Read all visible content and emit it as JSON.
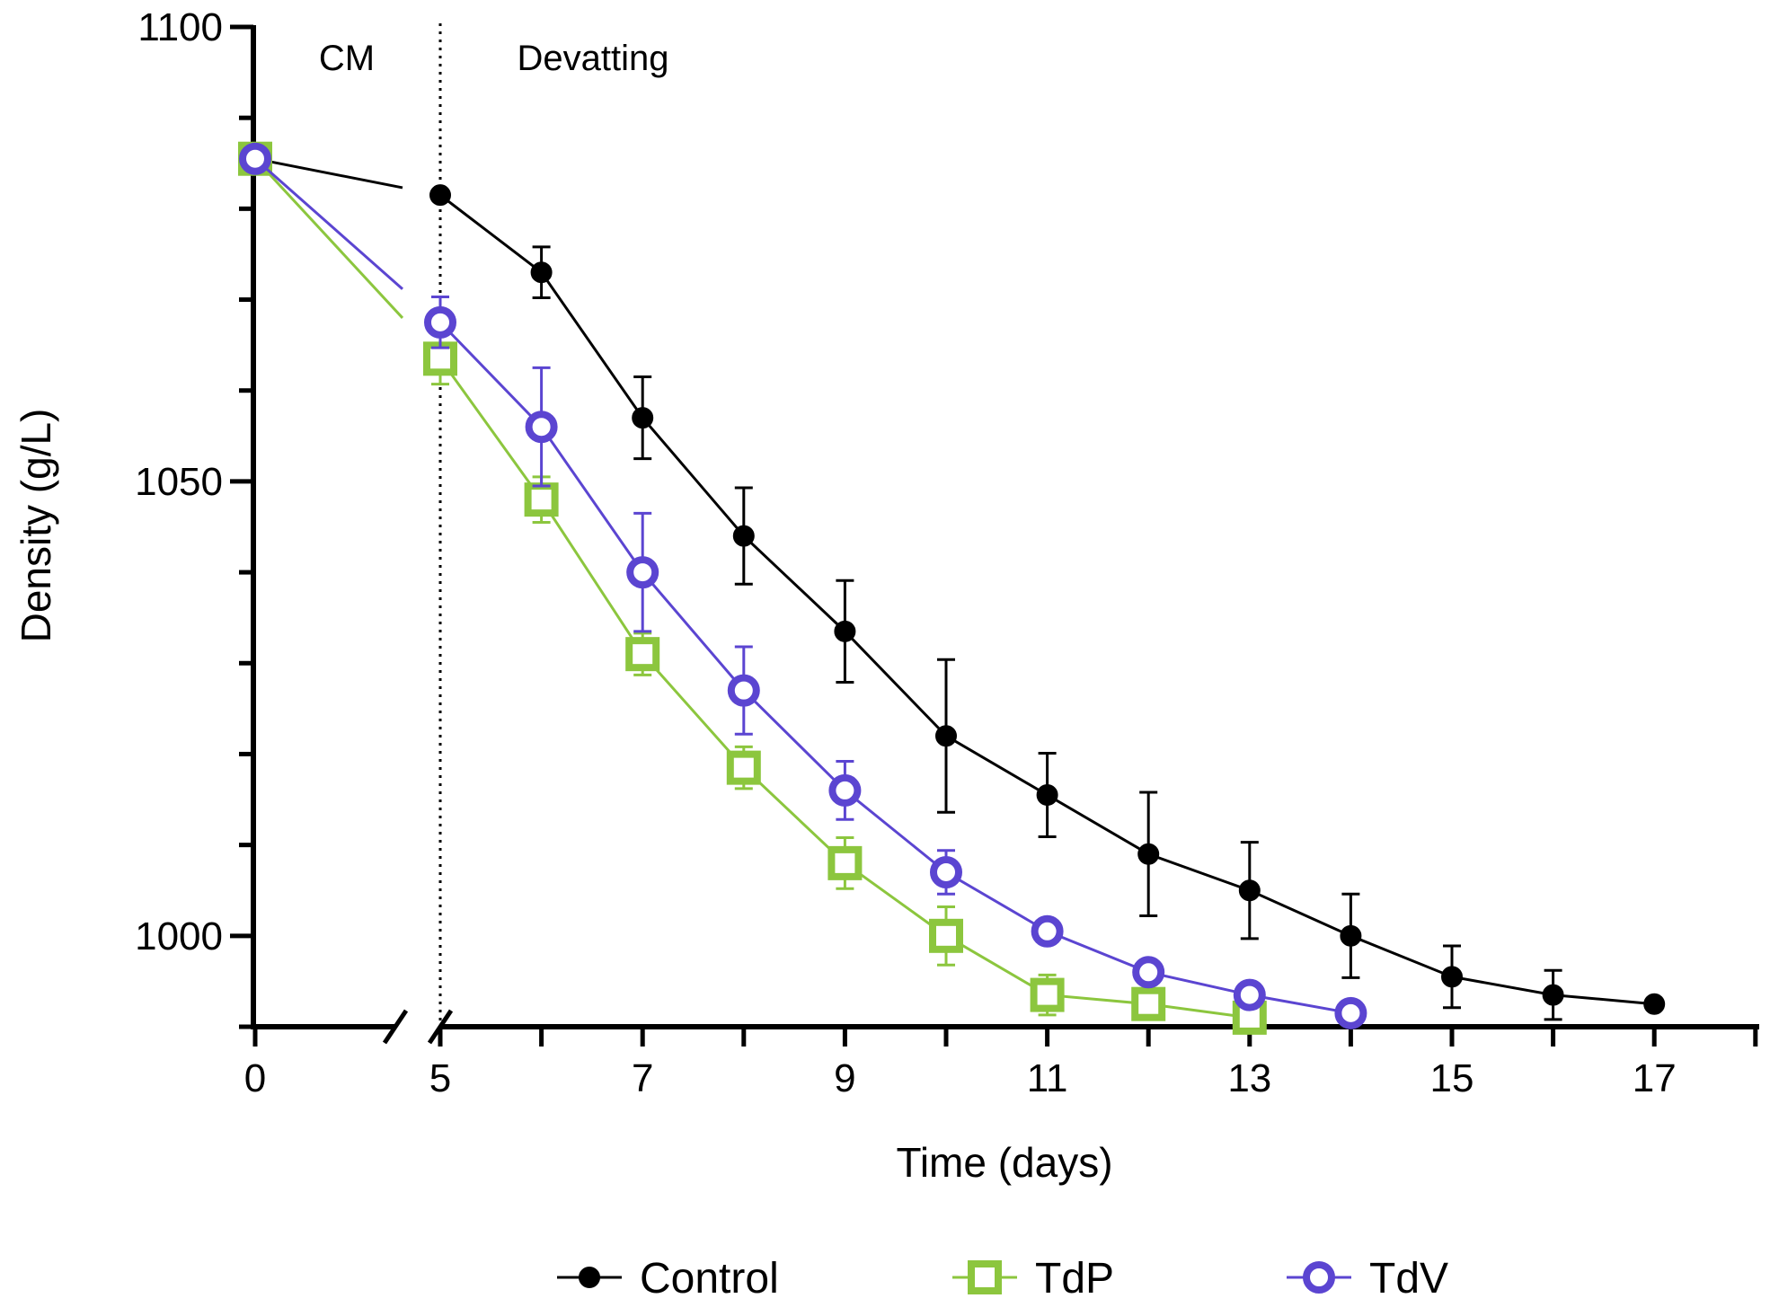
{
  "chart_data": {
    "type": "line",
    "xlabel": "Time (days)",
    "ylabel": "Density (g/L)",
    "ylim": [
      990,
      1100
    ],
    "yticks": [
      1000,
      1050,
      1100
    ],
    "xticks": [
      0,
      5,
      7,
      9,
      11,
      13,
      15,
      17
    ],
    "x_axis_break": "between 0 and 5",
    "annotations": [
      {
        "text": "CM"
      },
      {
        "text": "Devatting"
      }
    ],
    "phase_divider_x": 5,
    "legend_position": "bottom",
    "series": [
      {
        "name": "Control",
        "color": "#000000",
        "marker": "filled-circle",
        "x": [
          0,
          5,
          6,
          7,
          8,
          9,
          10,
          11,
          12,
          13,
          14,
          15,
          16,
          17
        ],
        "y": [
          1085.5,
          1081.5,
          1073.0,
          1057.0,
          1044.0,
          1033.5,
          1022.0,
          1015.5,
          1009.0,
          1005.0,
          1000.0,
          995.5,
          993.5,
          992.5
        ],
        "error": [
          0,
          0,
          2.8,
          4.5,
          5.3,
          5.6,
          8.4,
          4.6,
          6.8,
          5.3,
          4.6,
          3.4,
          2.7,
          0
        ]
      },
      {
        "name": "TdP",
        "color": "#8cc63e",
        "marker": "open-square",
        "x": [
          0,
          5,
          6,
          7,
          8,
          9,
          10,
          11,
          12,
          13
        ],
        "y": [
          1085.5,
          1063.5,
          1048.0,
          1031.0,
          1018.5,
          1008.0,
          1000.0,
          993.5,
          992.5,
          991.0
        ],
        "error": [
          0,
          2.8,
          2.5,
          2.3,
          2.3,
          2.8,
          3.2,
          2.2,
          0,
          0
        ]
      },
      {
        "name": "TdV",
        "color": "#5b45d1",
        "marker": "open-circle",
        "x": [
          0,
          5,
          6,
          7,
          8,
          9,
          10,
          11,
          12,
          13,
          14
        ],
        "y": [
          1085.5,
          1067.5,
          1056.0,
          1040.0,
          1027.0,
          1016.0,
          1007.0,
          1000.5,
          996.0,
          993.5,
          991.5
        ],
        "error": [
          0,
          2.8,
          6.5,
          6.5,
          4.8,
          3.2,
          2.4,
          0,
          0,
          0,
          0
        ]
      }
    ]
  }
}
